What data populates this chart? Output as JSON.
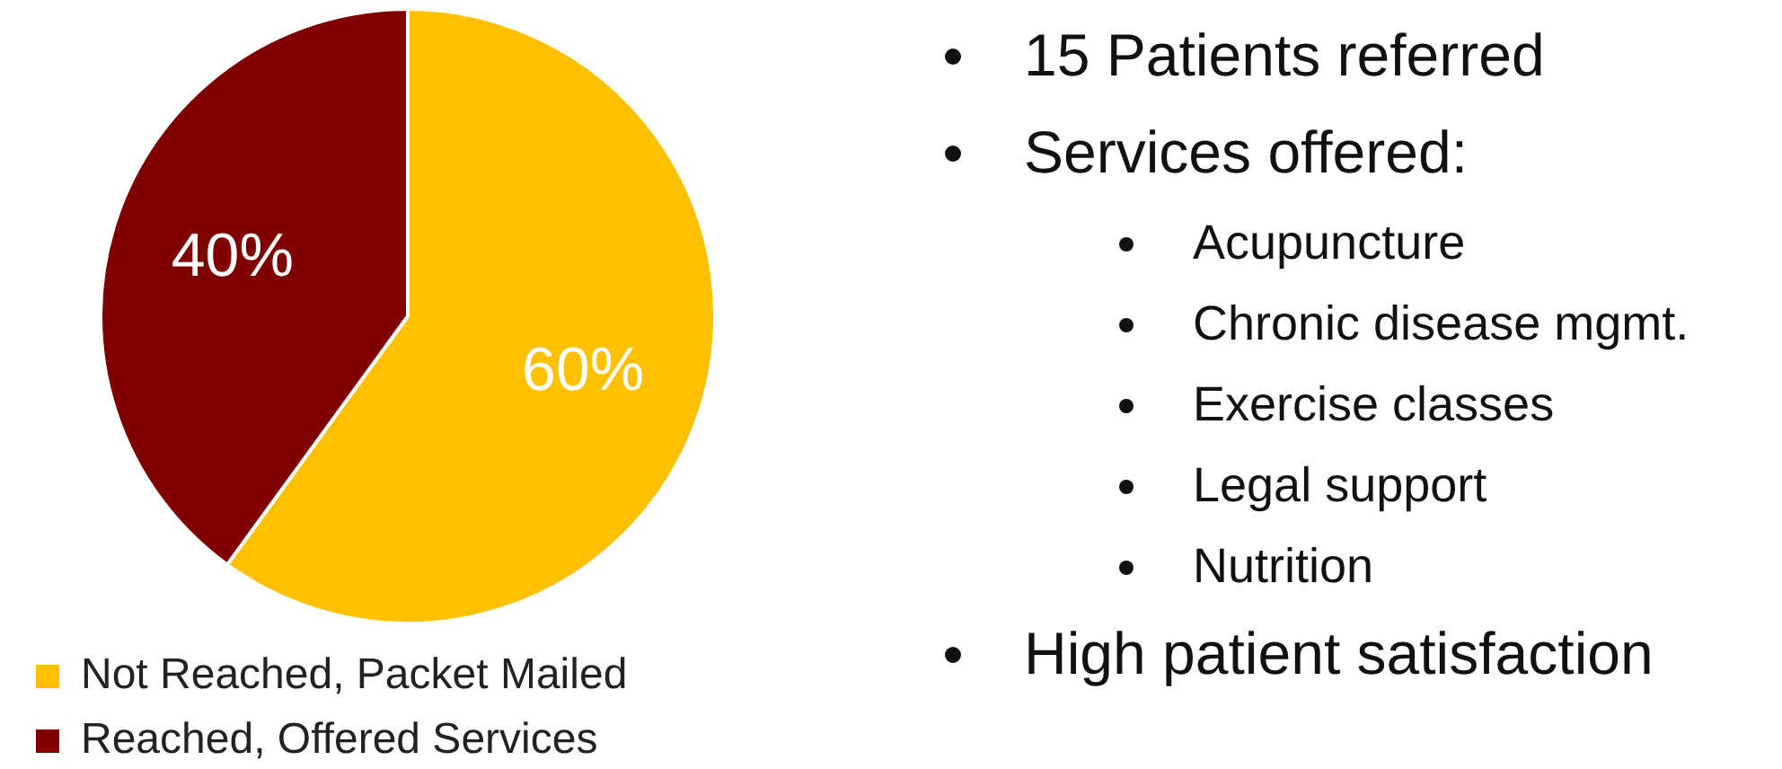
{
  "chart_data": [
    {
      "type": "pie",
      "categories": [
        "Not Reached, Packet Mailed",
        "Reached, Offered Services"
      ],
      "values": [
        60,
        40
      ],
      "colors": [
        "#ffc000",
        "#800000"
      ],
      "value_labels": [
        "60%",
        "40%"
      ],
      "legend": "bottom"
    },
    {
      "type": "other",
      "annotations": [
        "15 Patients referred"
      ]
    },
    {
      "type": "other",
      "title": "Services offered:",
      "annotations": [
        "Acupuncture",
        "Chronic disease mgmt.",
        "Exercise classes",
        "Legal support",
        "Nutrition"
      ]
    },
    {
      "type": "other",
      "annotations": [
        "High patient satisfaction"
      ]
    }
  ]
}
